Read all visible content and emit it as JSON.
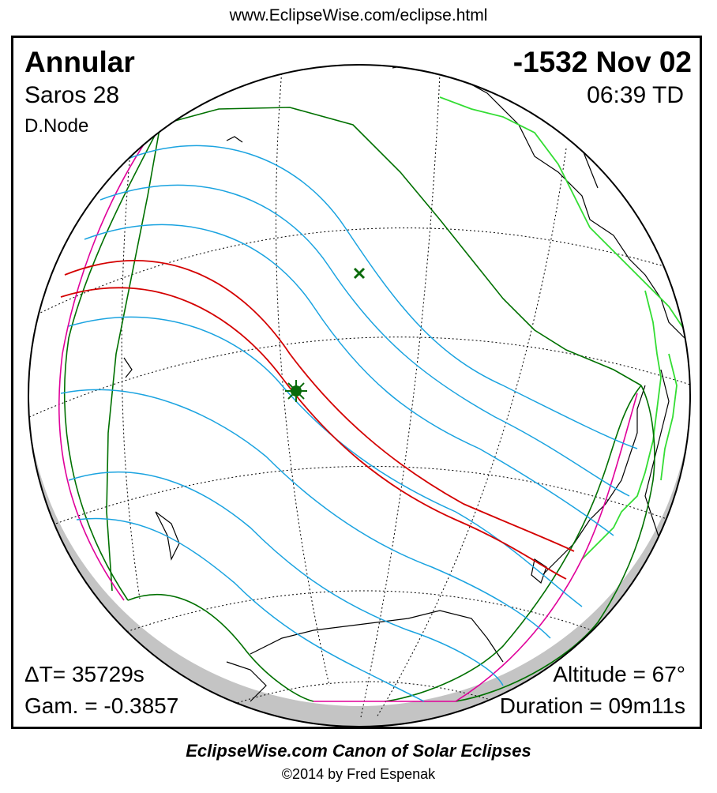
{
  "header": {
    "url": "www.EclipseWise.com/eclipse.html"
  },
  "eclipse": {
    "type": "Annular",
    "date": "-1532 Nov 02",
    "saros": "Saros  28",
    "time": "06:39 TD",
    "node": "D.Node",
    "delta_t": "ΔT=  35729s",
    "gamma": "Gam. = -0.3857",
    "altitude": "Altitude = 67°",
    "duration": "Duration = 09m11s"
  },
  "footer": {
    "canon": "EclipseWise.com Canon of Solar Eclipses",
    "copyright": "©2014 by Fred Espenak"
  },
  "map_legend": {
    "globe_view": "orthographic",
    "central_path_color": "#d40000",
    "penumbral_limit_color": "#007000",
    "partial_lines_color": "#1aa3e0",
    "rise_set_curve_color": "#e0009a",
    "coastline_color": "#000000",
    "border_color": "#33dd33",
    "greatest_eclipse_marker": "star",
    "subsolar_marker": "x"
  }
}
